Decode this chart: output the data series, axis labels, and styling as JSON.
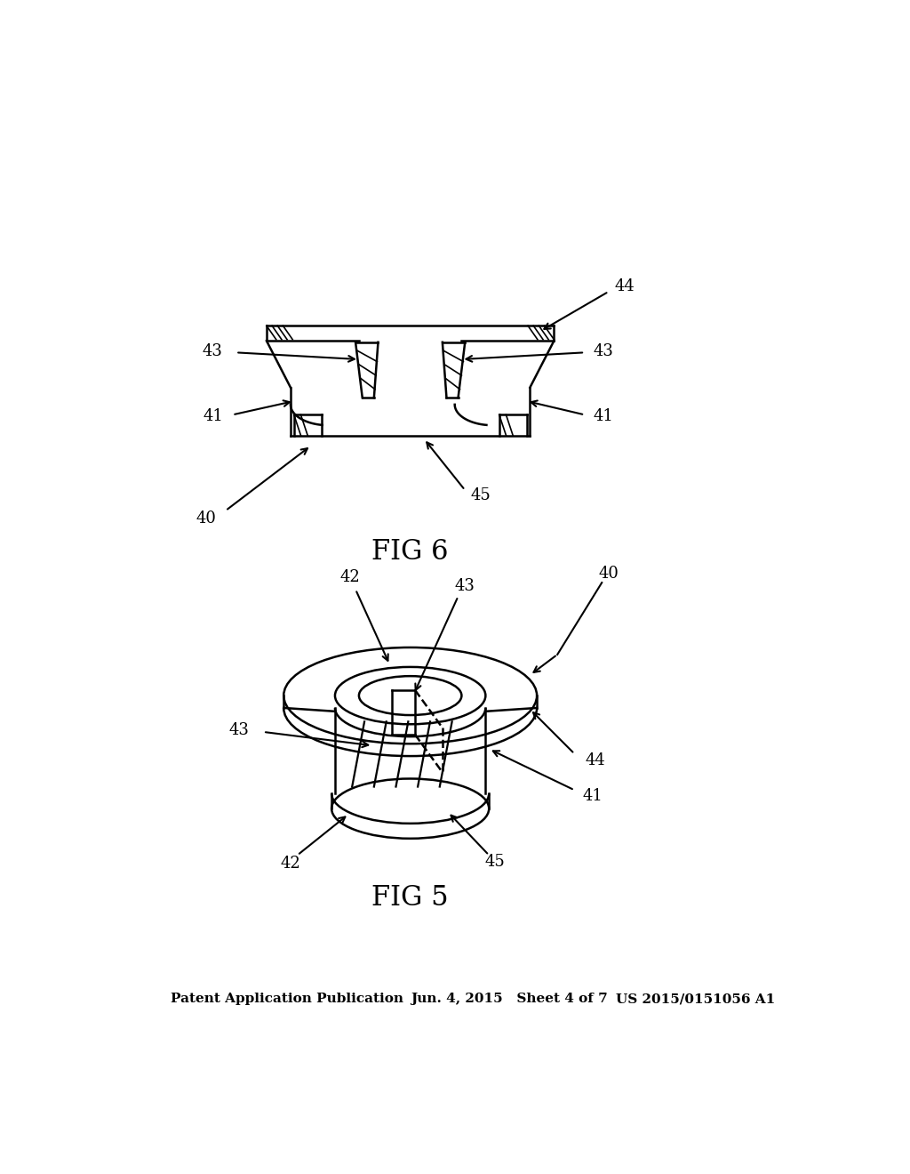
{
  "background_color": "#ffffff",
  "line_color": "#000000",
  "header_left": "Patent Application Publication",
  "header_mid": "Jun. 4, 2015   Sheet 4 of 7",
  "header_right": "US 2015/0151056 A1",
  "fig5_label": "FIG 5",
  "fig6_label": "FIG 6"
}
